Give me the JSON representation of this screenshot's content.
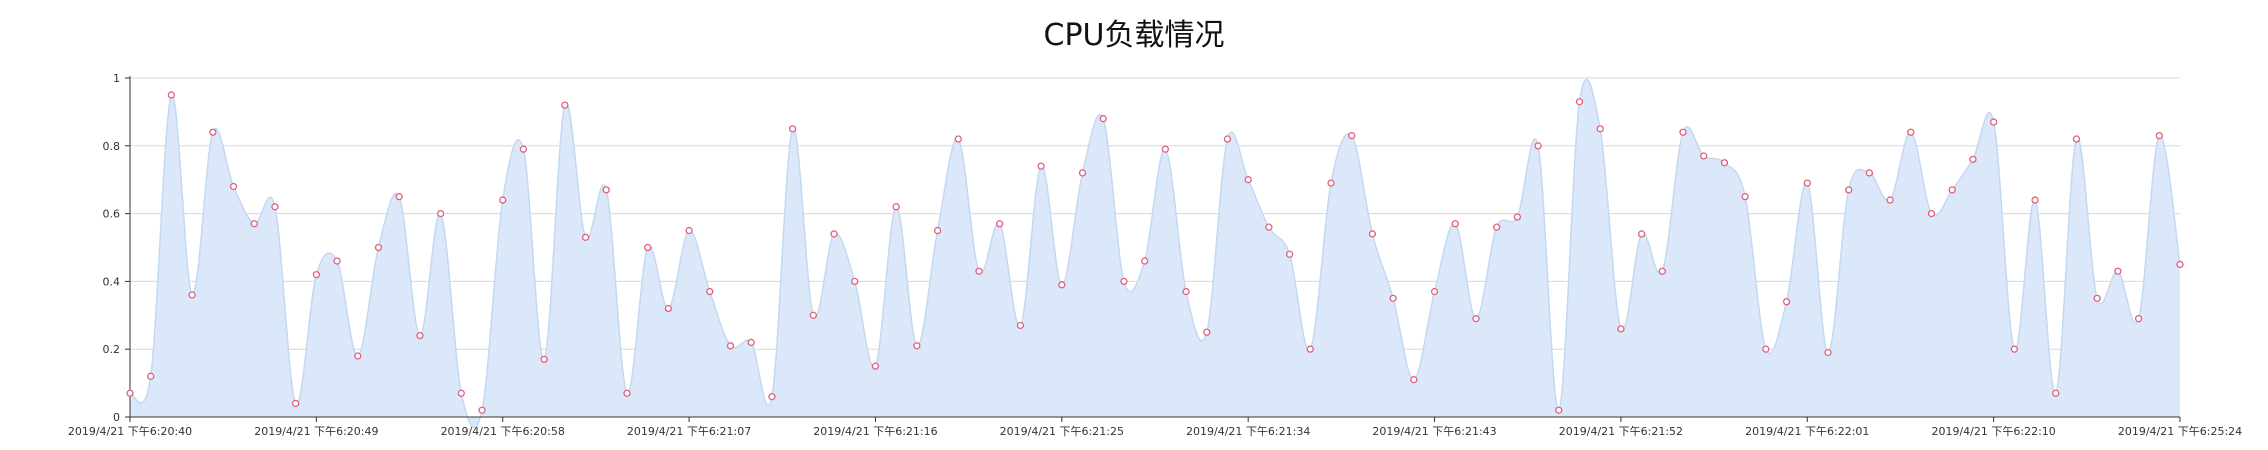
{
  "chart_data": {
    "type": "area",
    "title": "CPU负载情况",
    "xlabel": "",
    "ylabel": "",
    "ylim": [
      0,
      1
    ],
    "y_ticks": [
      "0",
      "0.2",
      "0.4",
      "0.6",
      "0.8",
      "1"
    ],
    "x_tick_labels": [
      "2019/4/21 下午6:20:40",
      "2019/4/21 下午6:20:49",
      "2019/4/21 下午6:20:58",
      "2019/4/21 下午6:21:07",
      "2019/4/21 下午6:21:16",
      "2019/4/21 下午6:21:25",
      "2019/4/21 下午6:21:34",
      "2019/4/21 下午6:21:43",
      "2019/4/21 下午6:21:52",
      "2019/4/21 下午6:22:01",
      "2019/4/21 下午6:22:10",
      "2019/4/21 下午6:25:24"
    ],
    "values": [
      0.07,
      0.12,
      0.95,
      0.36,
      0.84,
      0.68,
      0.57,
      0.62,
      0.04,
      0.42,
      0.46,
      0.18,
      0.5,
      0.65,
      0.24,
      0.6,
      0.07,
      0.02,
      0.64,
      0.79,
      0.17,
      0.92,
      0.53,
      0.67,
      0.07,
      0.5,
      0.32,
      0.55,
      0.37,
      0.21,
      0.22,
      0.06,
      0.85,
      0.3,
      0.54,
      0.4,
      0.15,
      0.62,
      0.21,
      0.55,
      0.82,
      0.43,
      0.57,
      0.27,
      0.74,
      0.39,
      0.72,
      0.88,
      0.4,
      0.46,
      0.79,
      0.37,
      0.25,
      0.82,
      0.7,
      0.56,
      0.48,
      0.2,
      0.69,
      0.83,
      0.54,
      0.35,
      0.11,
      0.37,
      0.57,
      0.29,
      0.56,
      0.59,
      0.8,
      0.02,
      0.93,
      0.85,
      0.26,
      0.54,
      0.43,
      0.84,
      0.77,
      0.75,
      0.65,
      0.2,
      0.34,
      0.69,
      0.19,
      0.67,
      0.72,
      0.64,
      0.84,
      0.6,
      0.67,
      0.76,
      0.87,
      0.2,
      0.64,
      0.07,
      0.82,
      0.35,
      0.43,
      0.29,
      0.83,
      0.45
    ],
    "grid": true,
    "colors": {
      "fill": "#dbe8fa",
      "line": "#c5d8f2",
      "point": "#e0607e",
      "grid": "#d8d8d8",
      "axis": "#333333"
    }
  }
}
